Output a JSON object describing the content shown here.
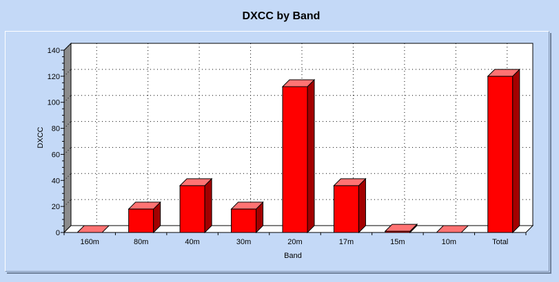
{
  "chart_data": {
    "type": "bar",
    "title": "DXCC by Band",
    "xlabel": "Band",
    "ylabel": "DXCC",
    "categories": [
      "160m",
      "80m",
      "40m",
      "30m",
      "20m",
      "17m",
      "15m",
      "10m",
      "Total"
    ],
    "values": [
      0,
      18,
      36,
      18,
      112,
      36,
      1,
      0,
      120
    ],
    "ylim": [
      0,
      140
    ],
    "yticks": [
      0,
      20,
      40,
      60,
      80,
      100,
      120,
      140
    ],
    "grid": true,
    "legend": "none",
    "colors": {
      "bar_front": "#ff0000",
      "bar_side": "#a30000",
      "bar_top": "#ff7373",
      "background": "#c4d9f7",
      "plot_area": "#ffffff",
      "wall": "#8c8c8c"
    }
  }
}
